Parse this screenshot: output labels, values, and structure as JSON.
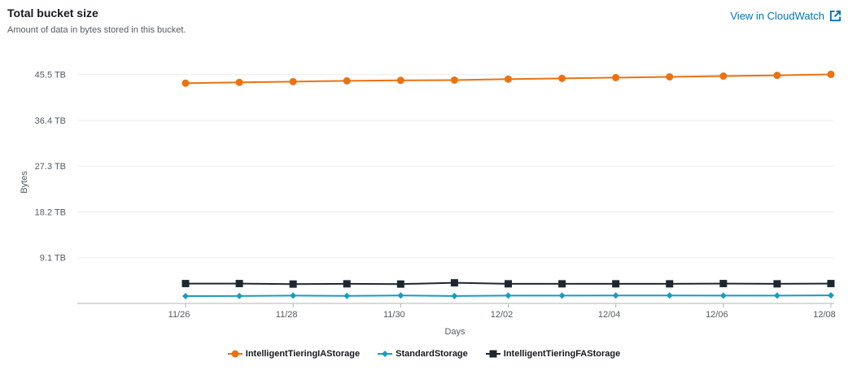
{
  "header": {
    "title": "Total bucket size",
    "subtitle": "Amount of data in bytes stored in this bucket.",
    "cloudwatch_link": "View in CloudWatch"
  },
  "chart_data": {
    "type": "line",
    "xlabel": "Days",
    "ylabel": "Bytes",
    "ylim": [
      0,
      48.2
    ],
    "y_ticks": [
      {
        "value": 9.1,
        "label": "9.1 TB"
      },
      {
        "value": 18.2,
        "label": "18.2 TB"
      },
      {
        "value": 27.3,
        "label": "27.3 TB"
      },
      {
        "value": 36.4,
        "label": "36.4 TB"
      },
      {
        "value": 45.5,
        "label": "45.5 TB"
      }
    ],
    "x_ticks": [
      {
        "value": 0,
        "label": "11/26"
      },
      {
        "value": 2,
        "label": "11/28"
      },
      {
        "value": 4,
        "label": "11/30"
      },
      {
        "value": 6,
        "label": "12/02"
      },
      {
        "value": 8,
        "label": "12/04"
      },
      {
        "value": 10,
        "label": "12/06"
      },
      {
        "value": 12,
        "label": "12/08"
      }
    ],
    "x": [
      0,
      1,
      2,
      3,
      4,
      5,
      6,
      7,
      8,
      9,
      10,
      11,
      12
    ],
    "series": [
      {
        "name": "IntelligentTieringIAStorage",
        "color": "#ec7211",
        "marker": "circle",
        "values": [
          43.8,
          43.95,
          44.1,
          44.25,
          44.35,
          44.4,
          44.6,
          44.75,
          44.9,
          45.05,
          45.2,
          45.35,
          45.55
        ]
      },
      {
        "name": "StandardStorage",
        "color": "#1b9bbf",
        "marker": "diamond",
        "values": [
          1.45,
          1.47,
          1.55,
          1.5,
          1.58,
          1.48,
          1.55,
          1.55,
          1.58,
          1.58,
          1.55,
          1.55,
          1.6
        ]
      },
      {
        "name": "IntelligentTieringFAStorage",
        "color": "#1e2730",
        "marker": "square",
        "values": [
          3.95,
          3.95,
          3.85,
          3.9,
          3.85,
          4.1,
          3.9,
          3.9,
          3.9,
          3.9,
          3.95,
          3.9,
          3.95
        ]
      }
    ],
    "grid": "horizontal",
    "legend_position": "bottom-center"
  }
}
